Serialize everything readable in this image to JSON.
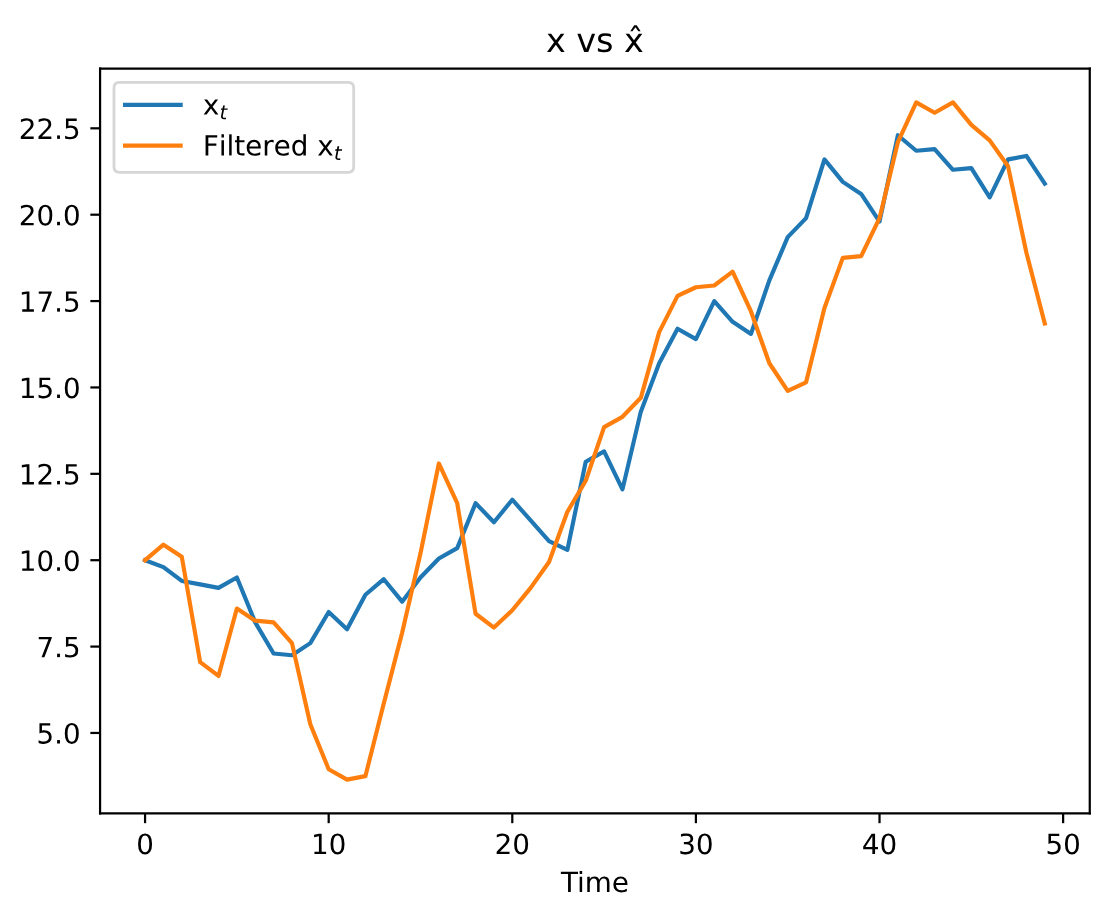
{
  "chart_data": {
    "type": "line",
    "title": "x vs x̂",
    "xlabel": "Time",
    "x": [
      0,
      1,
      2,
      3,
      4,
      5,
      6,
      7,
      8,
      9,
      10,
      11,
      12,
      13,
      14,
      15,
      16,
      17,
      18,
      19,
      20,
      21,
      22,
      23,
      24,
      25,
      26,
      27,
      28,
      29,
      30,
      31,
      32,
      33,
      34,
      35,
      36,
      37,
      38,
      39,
      40,
      41,
      42,
      43,
      44,
      45,
      46,
      47,
      48,
      49
    ],
    "series": [
      {
        "name": "x$_{t}$",
        "color": "#1f77b4",
        "values": [
          10.0,
          9.8,
          9.4,
          9.3,
          9.2,
          9.5,
          8.2,
          7.3,
          7.25,
          7.6,
          8.5,
          8.0,
          9.0,
          9.45,
          8.8,
          9.5,
          10.05,
          10.35,
          11.65,
          11.1,
          11.75,
          11.15,
          10.55,
          10.3,
          12.85,
          13.15,
          12.05,
          14.3,
          15.7,
          16.7,
          16.4,
          17.5,
          16.9,
          16.55,
          18.1,
          19.35,
          19.9,
          21.6,
          20.95,
          20.6,
          19.8,
          22.3,
          21.85,
          21.9,
          21.3,
          21.35,
          20.5,
          21.6,
          21.7,
          20.9
        ]
      },
      {
        "name": "Filtered x$_{t}$",
        "color": "#ff7f0e",
        "values": [
          10.0,
          10.45,
          10.1,
          7.05,
          6.65,
          8.6,
          8.25,
          8.2,
          7.6,
          5.25,
          3.95,
          3.65,
          3.75,
          5.85,
          7.9,
          10.2,
          12.8,
          11.65,
          8.45,
          8.05,
          8.55,
          9.2,
          9.95,
          11.4,
          12.3,
          13.85,
          14.15,
          14.7,
          16.6,
          17.65,
          17.9,
          17.95,
          18.35,
          17.2,
          15.7,
          14.9,
          15.15,
          17.3,
          18.75,
          18.8,
          19.9,
          22.1,
          23.25,
          22.95,
          23.25,
          22.6,
          22.15,
          21.4,
          18.9,
          16.85
        ]
      }
    ],
    "xlim": [
      -2.45,
      51.45
    ],
    "ylim": [
      2.67,
      24.23
    ],
    "xticks": [
      0,
      10,
      20,
      30,
      40,
      50
    ],
    "yticks": [
      {
        "value": 5,
        "label": "5.0"
      },
      {
        "value": 7.5,
        "label": "7.5"
      },
      {
        "value": 10,
        "label": "10.0"
      },
      {
        "value": 12.5,
        "label": "12.5"
      },
      {
        "value": 15,
        "label": "15.0"
      },
      {
        "value": 17.5,
        "label": "17.5"
      },
      {
        "value": 20,
        "label": "20.0"
      },
      {
        "value": 22.5,
        "label": "22.5"
      }
    ],
    "legend": "top left",
    "grid": false
  }
}
